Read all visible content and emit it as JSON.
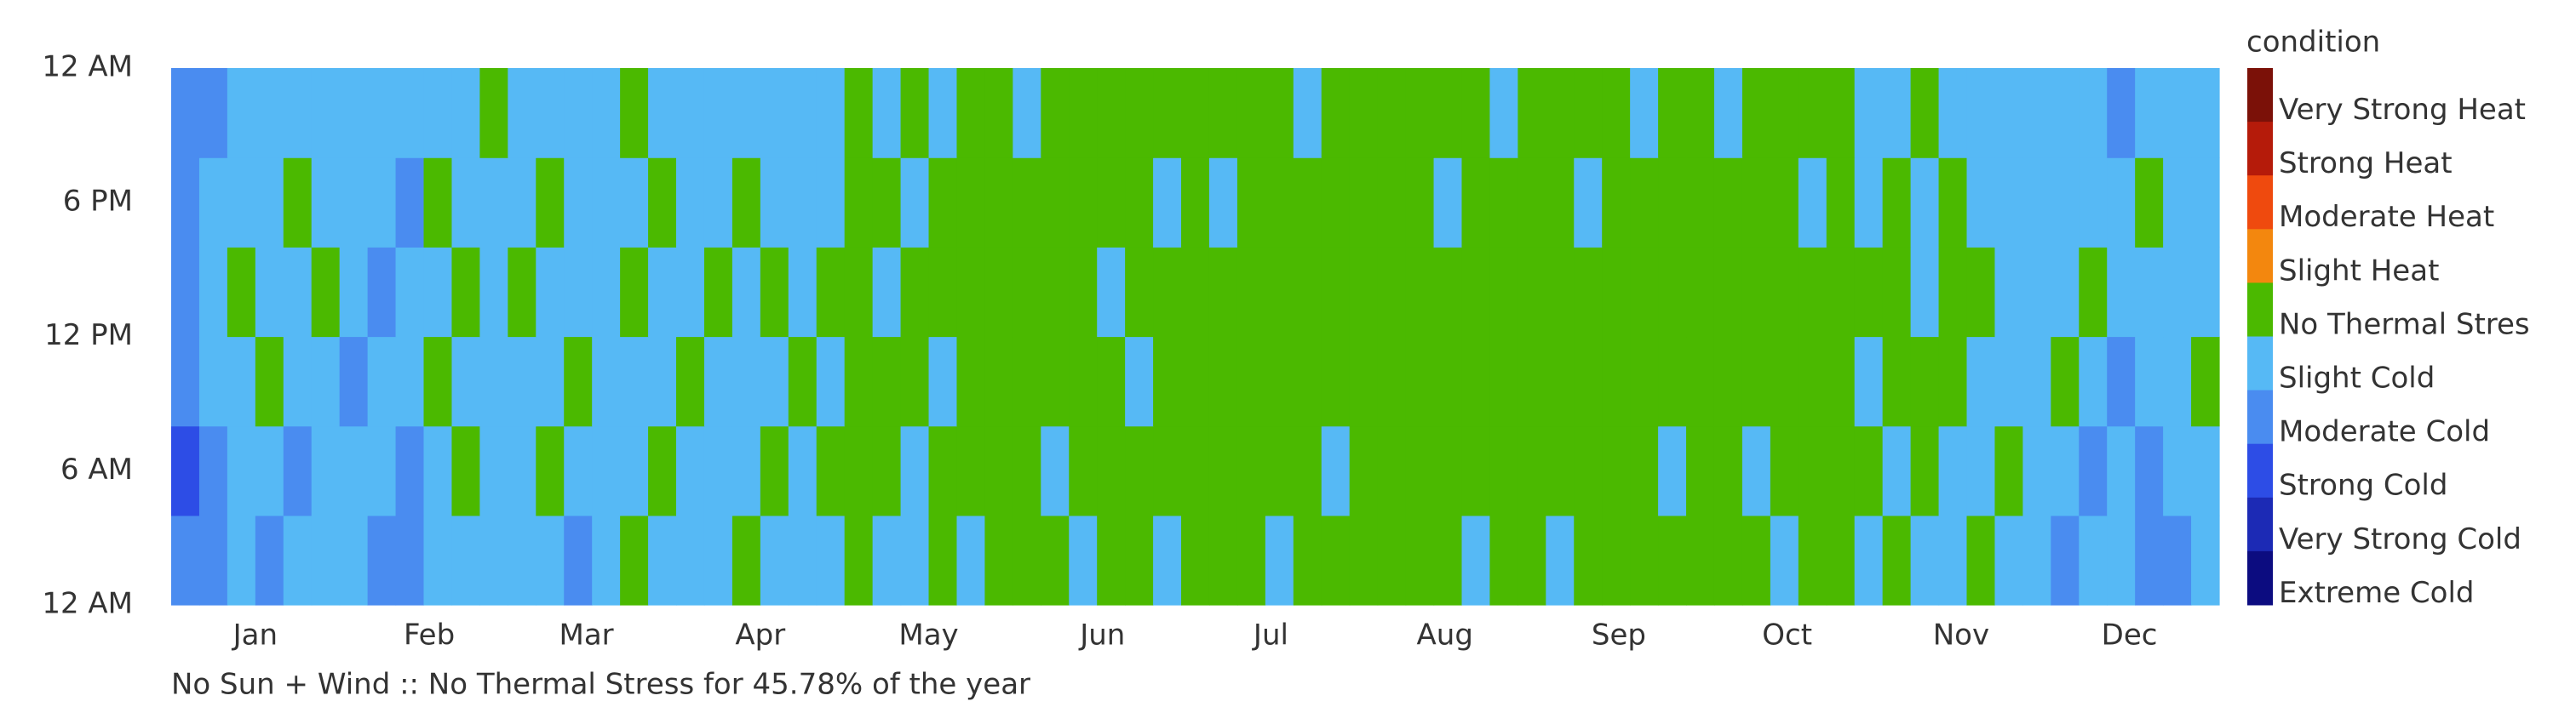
{
  "chart_data": {
    "type": "heatmap",
    "caption": "No Sun + Wind :: No Thermal Stress for 45.78% of the year",
    "xlim": [
      0,
      365
    ],
    "xticks": [
      {
        "value": 15,
        "label": "Jan"
      },
      {
        "value": 46,
        "label": "Feb"
      },
      {
        "value": 74,
        "label": "Mar"
      },
      {
        "value": 105,
        "label": "Apr"
      },
      {
        "value": 135,
        "label": "May"
      },
      {
        "value": 166,
        "label": "Jun"
      },
      {
        "value": 196,
        "label": "Jul"
      },
      {
        "value": 227,
        "label": "Aug"
      },
      {
        "value": 258,
        "label": "Sep"
      },
      {
        "value": 288,
        "label": "Oct"
      },
      {
        "value": 319,
        "label": "Nov"
      },
      {
        "value": 349,
        "label": "Dec"
      }
    ],
    "ylim": [
      0,
      24
    ],
    "yticks": [
      {
        "value": 24,
        "label": "12 AM"
      },
      {
        "value": 18,
        "label": "6 PM"
      },
      {
        "value": 12,
        "label": "12 PM"
      },
      {
        "value": 6,
        "label": "6 AM"
      },
      {
        "value": 0,
        "label": "12 AM"
      }
    ],
    "legend": {
      "title": "condition",
      "categories": [
        "Very Strong Heat",
        "Strong Heat",
        "Moderate Heat",
        "Slight Heat",
        "No Thermal Stres",
        "Slight Cold",
        "Moderate Cold",
        "Strong Cold",
        "Very Strong Cold",
        "Extreme Cold"
      ],
      "colors": [
        "#7b1108",
        "#b51b0a",
        "#ef4a0e",
        "#f3870e",
        "#4bb900",
        "#56b9f5",
        "#4a8cf0",
        "#2d4de6",
        "#1c2ab5",
        "#0c0c80"
      ]
    },
    "z": [
      [
        6,
        6,
        5,
        6,
        5,
        5,
        5,
        6,
        6,
        5,
        5,
        5,
        5,
        5,
        6,
        5,
        4,
        5,
        5,
        5,
        4,
        5,
        5,
        5,
        4,
        5,
        5,
        4,
        5,
        4,
        4,
        4,
        5,
        4,
        4,
        5,
        4,
        4,
        4,
        5,
        4,
        4,
        4,
        4,
        4,
        4,
        5,
        4,
        4,
        5,
        4,
        4,
        4,
        4,
        4,
        4,
        4,
        5,
        4,
        4,
        5,
        4,
        5,
        5,
        4,
        5,
        5,
        6,
        5,
        5,
        6,
        6,
        5
      ],
      [
        7,
        6,
        5,
        5,
        6,
        5,
        5,
        5,
        6,
        5,
        4,
        5,
        5,
        4,
        5,
        5,
        5,
        4,
        5,
        5,
        5,
        4,
        5,
        4,
        4,
        4,
        5,
        4,
        4,
        4,
        4,
        5,
        4,
        4,
        4,
        4,
        4,
        4,
        4,
        4,
        4,
        5,
        4,
        4,
        4,
        4,
        4,
        4,
        4,
        4,
        4,
        4,
        4,
        5,
        4,
        4,
        5,
        4,
        4,
        4,
        4,
        5,
        4,
        5,
        5,
        4,
        5,
        5,
        6,
        5,
        6,
        5,
        5
      ],
      [
        6,
        5,
        5,
        4,
        5,
        5,
        6,
        5,
        5,
        4,
        5,
        5,
        5,
        5,
        4,
        5,
        5,
        5,
        4,
        5,
        5,
        5,
        4,
        5,
        4,
        4,
        4,
        5,
        4,
        4,
        4,
        4,
        4,
        4,
        5,
        4,
        4,
        4,
        4,
        4,
        4,
        4,
        4,
        4,
        4,
        4,
        4,
        4,
        4,
        4,
        4,
        4,
        4,
        4,
        4,
        4,
        4,
        4,
        4,
        4,
        5,
        4,
        4,
        4,
        5,
        5,
        5,
        4,
        5,
        6,
        5,
        5,
        4
      ],
      [
        6,
        5,
        4,
        5,
        5,
        4,
        5,
        6,
        5,
        5,
        4,
        5,
        4,
        5,
        5,
        5,
        4,
        5,
        5,
        4,
        5,
        4,
        5,
        4,
        4,
        5,
        4,
        4,
        4,
        4,
        4,
        4,
        4,
        5,
        4,
        4,
        4,
        4,
        4,
        4,
        4,
        4,
        4,
        4,
        4,
        4,
        4,
        4,
        4,
        4,
        4,
        4,
        4,
        4,
        4,
        4,
        4,
        4,
        4,
        4,
        4,
        4,
        5,
        4,
        4,
        5,
        5,
        5,
        4,
        5,
        5,
        5,
        5
      ],
      [
        6,
        5,
        5,
        5,
        4,
        5,
        5,
        5,
        6,
        4,
        5,
        5,
        5,
        4,
        5,
        5,
        5,
        4,
        5,
        5,
        4,
        5,
        5,
        5,
        4,
        4,
        5,
        4,
        4,
        4,
        4,
        4,
        4,
        4,
        4,
        5,
        4,
        5,
        4,
        4,
        4,
        4,
        4,
        4,
        4,
        5,
        4,
        4,
        4,
        4,
        5,
        4,
        4,
        4,
        4,
        4,
        4,
        4,
        5,
        4,
        5,
        4,
        5,
        4,
        5,
        5,
        5,
        5,
        5,
        5,
        4,
        5,
        5
      ],
      [
        6,
        6,
        5,
        5,
        5,
        5,
        5,
        5,
        5,
        5,
        5,
        4,
        5,
        5,
        5,
        5,
        4,
        5,
        5,
        5,
        5,
        5,
        5,
        5,
        4,
        5,
        4,
        5,
        4,
        4,
        5,
        4,
        4,
        4,
        4,
        4,
        4,
        4,
        4,
        4,
        5,
        4,
        4,
        4,
        4,
        4,
        4,
        5,
        4,
        4,
        4,
        4,
        5,
        4,
        4,
        5,
        4,
        4,
        4,
        4,
        5,
        5,
        4,
        5,
        5,
        5,
        5,
        5,
        5,
        6,
        5,
        5,
        5
      ]
    ]
  }
}
